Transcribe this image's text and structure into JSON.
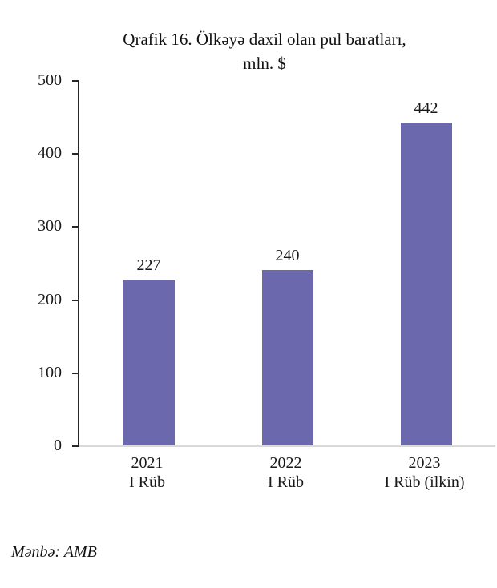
{
  "chart_data": {
    "type": "bar",
    "title": "Qrafik 16. Ölkəyə daxil olan pul baratları,\nmln. $",
    "categories": [
      {
        "line1": "2021",
        "line2": "I Rüb"
      },
      {
        "line1": "2022",
        "line2": "I Rüb"
      },
      {
        "line1": "2023",
        "line2": "I Rüb (ilkin)"
      }
    ],
    "values": [
      227,
      240,
      442
    ],
    "data_labels": [
      "227",
      "240",
      "442"
    ],
    "y_ticks": [
      "0",
      "100",
      "200",
      "300",
      "400",
      "500"
    ],
    "ylim": [
      0,
      500
    ],
    "bar_color": "#6c68ae",
    "axis_color": "#262626",
    "baseline_color": "#d9d9d9",
    "grid": "off",
    "legend": "none"
  },
  "source_note": {
    "text": "Mənbə: AMB"
  }
}
